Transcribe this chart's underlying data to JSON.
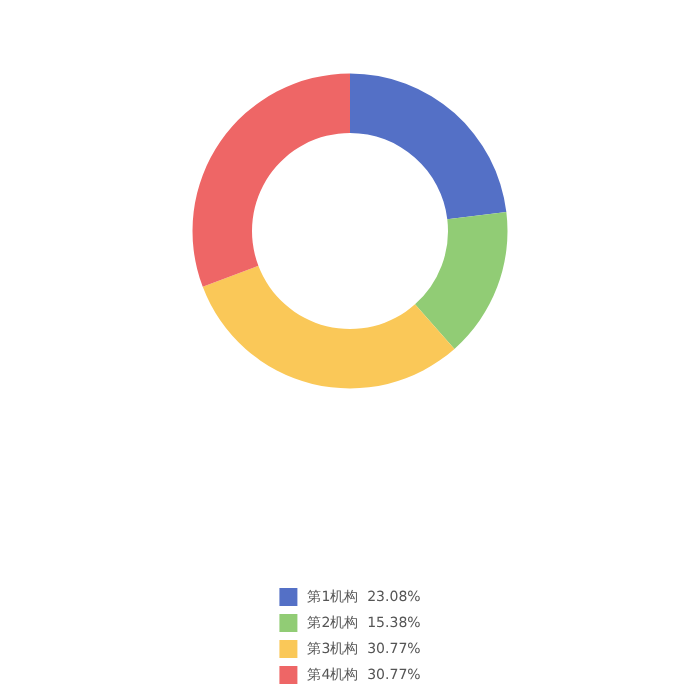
{
  "chart_data": {
    "type": "donut",
    "categories": [
      "第1机构  23.08%",
      "第2机构  15.38%",
      "第3机构  30.77%",
      "第4机构  30.77%"
    ],
    "values": [
      23.08,
      15.38,
      30.77,
      30.77
    ],
    "colors": [
      "#5470c6",
      "#91cc75",
      "#fac858",
      "#ee6666"
    ],
    "legend": "bottom"
  }
}
